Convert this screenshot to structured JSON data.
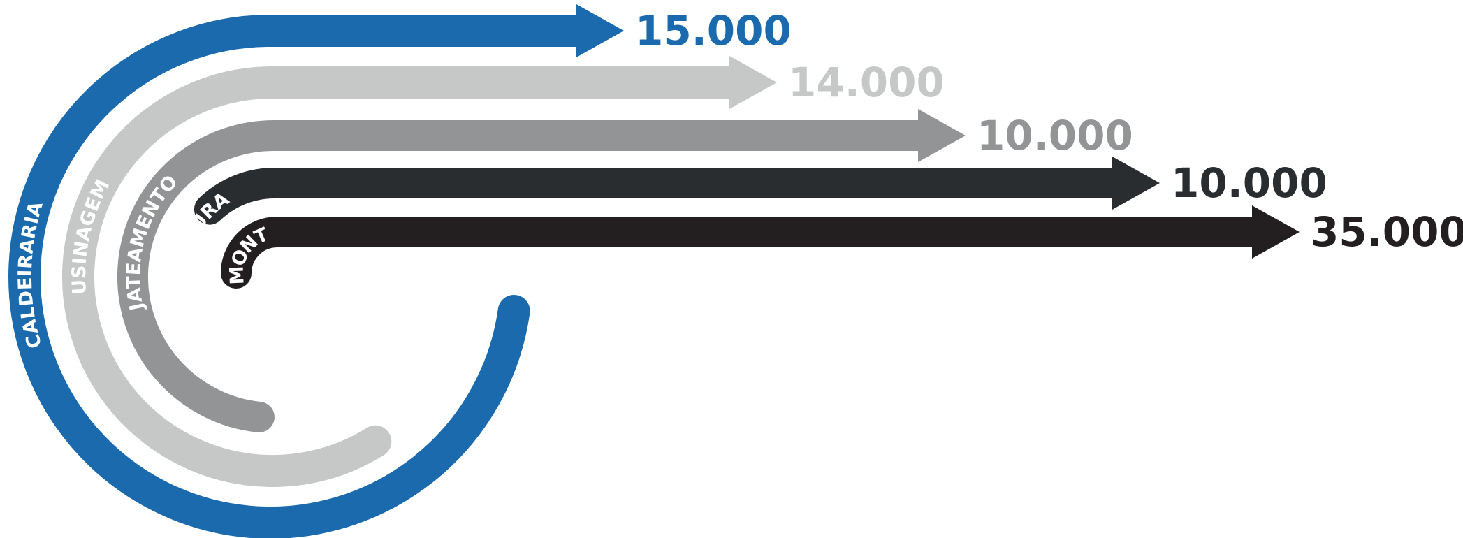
{
  "chart_data": {
    "type": "bar",
    "orientation": "horizontal",
    "categories": [
      "CALDEIRARIA",
      "USINAGEM",
      "JATEAMENTO",
      "PINTURA",
      "MONTAGEM"
    ],
    "values": [
      15000,
      14000,
      10000,
      10000,
      35000
    ],
    "value_labels": [
      "15.000",
      "14.000",
      "10.000",
      "10.000",
      "35.000"
    ],
    "colors": [
      "#1b6aad",
      "#c6c7c7",
      "#939496",
      "#2a2d30",
      "#231f20"
    ],
    "title": "",
    "xlabel": "",
    "ylabel": ""
  }
}
